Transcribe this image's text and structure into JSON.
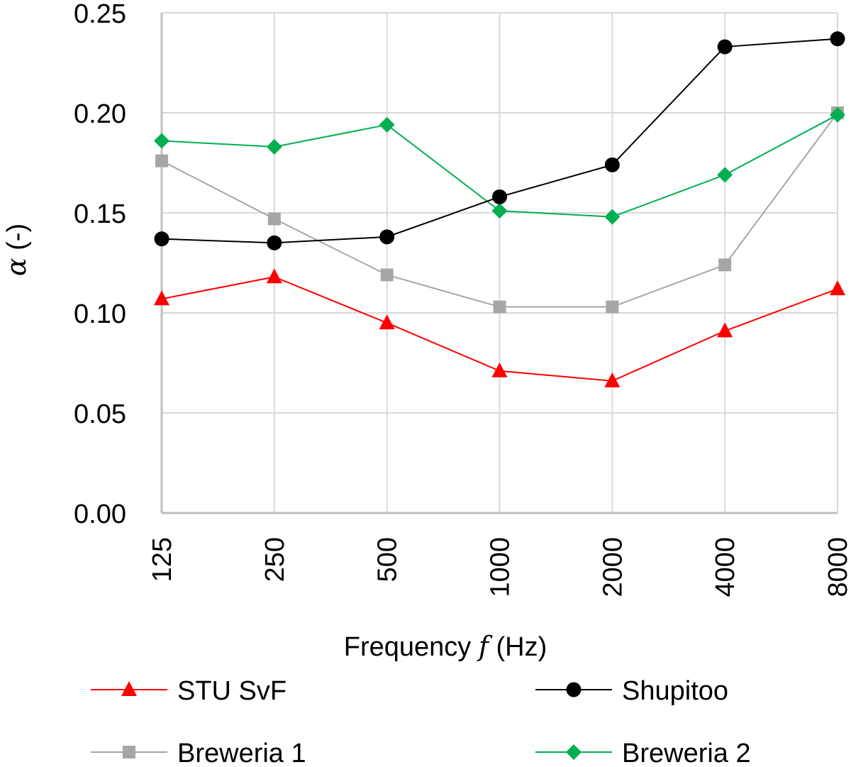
{
  "chart_data": {
    "type": "line",
    "title": "",
    "categories": [
      "125",
      "250",
      "500",
      "1000",
      "2000",
      "4000",
      "8000"
    ],
    "ylim": [
      0,
      0.25
    ],
    "yticks": [
      "0.00",
      "0.05",
      "0.10",
      "0.15",
      "0.20",
      "0.25"
    ],
    "ylabel": {
      "symbol": "α",
      "suffix": " (-)"
    },
    "xlabel": {
      "prefix": "Frequency ",
      "symbol": "f",
      "suffix": " (Hz)"
    },
    "grid": true,
    "legend_position": "bottom",
    "series": [
      {
        "key": "stu",
        "name": "STU SvF",
        "color": "#ff0000",
        "marker": "triangle",
        "values": [
          0.107,
          0.118,
          0.095,
          0.071,
          0.066,
          0.091,
          0.112
        ]
      },
      {
        "key": "shupitoo",
        "name": "Shupitoo",
        "color": "#000000",
        "marker": "circle",
        "values": [
          0.137,
          0.135,
          0.138,
          0.158,
          0.174,
          0.233,
          0.237
        ]
      },
      {
        "key": "breweria1",
        "name": "Breweria 1",
        "color": "#a6a6a6",
        "marker": "square",
        "values": [
          0.176,
          0.147,
          0.119,
          0.103,
          0.103,
          0.124,
          0.2
        ]
      },
      {
        "key": "breweria2",
        "name": "Breweria 2",
        "color": "#00b050",
        "marker": "diamond",
        "values": [
          0.186,
          0.183,
          0.194,
          0.151,
          0.148,
          0.169,
          0.199
        ]
      }
    ]
  }
}
